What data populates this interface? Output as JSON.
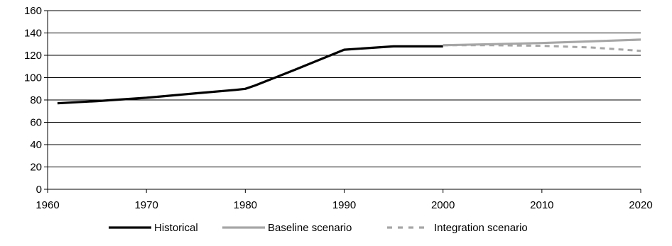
{
  "chart_data": {
    "type": "line",
    "xlim": [
      1960,
      2020
    ],
    "ylim": [
      0,
      160
    ],
    "x_ticks": [
      1960,
      1970,
      1980,
      1990,
      2000,
      2010,
      2020
    ],
    "y_ticks": [
      0,
      20,
      40,
      60,
      80,
      100,
      120,
      140,
      160
    ],
    "grid": "horizontal",
    "legend_position": "bottom",
    "series": [
      {
        "name": "Historical",
        "color": "#000000",
        "style": "solid",
        "x": [
          1961,
          1965,
          1970,
          1975,
          1979,
          1980,
          1981,
          1985,
          1990,
          1995,
          2000
        ],
        "y": [
          77,
          79,
          82,
          86,
          89,
          90,
          93,
          107,
          125,
          128,
          128
        ]
      },
      {
        "name": "Baseline scenario",
        "color": "#a6a6a6",
        "style": "solid",
        "x": [
          2000,
          2005,
          2010,
          2015,
          2020
        ],
        "y": [
          129,
          130,
          131,
          132.5,
          134
        ]
      },
      {
        "name": "Integration scenario",
        "color": "#a6a6a6",
        "style": "dashed",
        "x": [
          2000,
          2005,
          2010,
          2015,
          2020
        ],
        "y": [
          129,
          129,
          128.5,
          127,
          124
        ]
      }
    ]
  }
}
